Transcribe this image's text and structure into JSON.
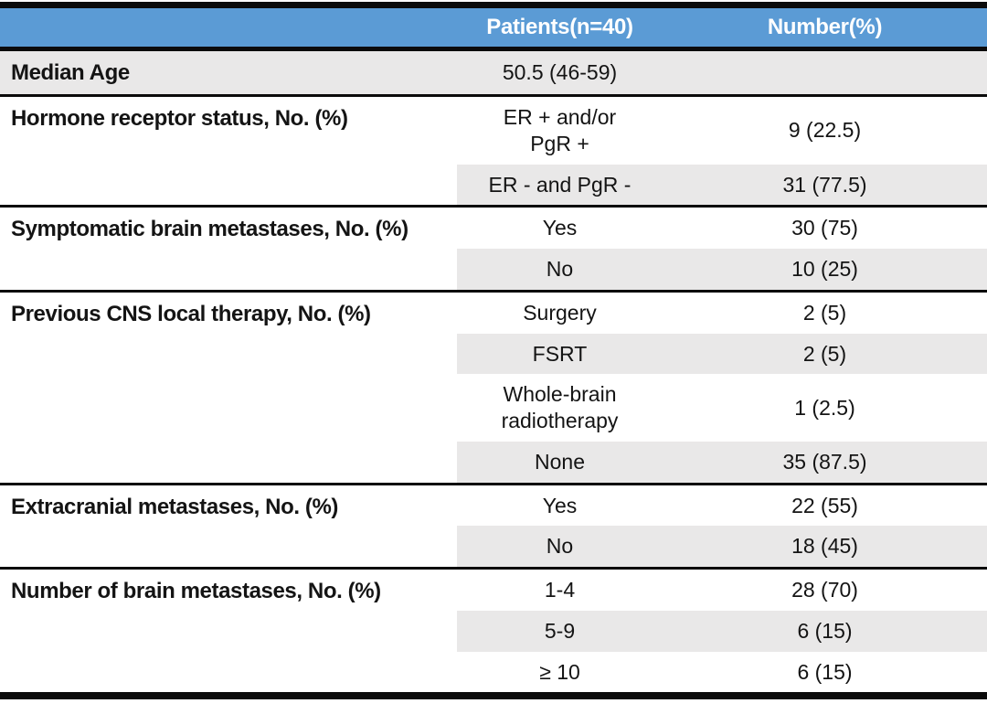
{
  "table": {
    "title_semantic": "Patient characteristics table",
    "colors": {
      "header_bg": "#5B9BD5",
      "header_text": "#FFFFFF",
      "band_gray": "#E9E8E8",
      "rule_black": "#0B0B0B"
    },
    "header": {
      "col1": "",
      "col2": "Patients(n=40)",
      "col3": "Number(%)"
    },
    "sections": [
      {
        "label": "Median Age",
        "rows": [
          {
            "value": "50.5 (46-59)",
            "number": ""
          }
        ]
      },
      {
        "label": "Hormone receptor status, No. (%)",
        "rows": [
          {
            "value": "ER + and/or\nPgR +",
            "number": "9 (22.5)"
          },
          {
            "value": "ER - and PgR -",
            "number": "31 (77.5)"
          }
        ]
      },
      {
        "label": "Symptomatic brain metastases, No. (%)",
        "rows": [
          {
            "value": "Yes",
            "number": "30 (75)"
          },
          {
            "value": "No",
            "number": "10 (25)"
          }
        ]
      },
      {
        "label": "Previous CNS local therapy, No. (%)",
        "rows": [
          {
            "value": "Surgery",
            "number": "2 (5)"
          },
          {
            "value": "FSRT",
            "number": "2 (5)"
          },
          {
            "value": "Whole-brain\nradiotherapy",
            "number": "1 (2.5)"
          },
          {
            "value": "None",
            "number": "35 (87.5)"
          }
        ]
      },
      {
        "label": "Extracranial metastases, No. (%)",
        "rows": [
          {
            "value": "Yes",
            "number": "22 (55)"
          },
          {
            "value": "No",
            "number": "18 (45)"
          }
        ]
      },
      {
        "label": "Number of brain metastases, No. (%)",
        "rows": [
          {
            "value": "1-4",
            "number": "28 (70)"
          },
          {
            "value": "5-9",
            "number": "6 (15)"
          },
          {
            "value": "≥ 10",
            "number": "6 (15)"
          }
        ]
      }
    ]
  }
}
